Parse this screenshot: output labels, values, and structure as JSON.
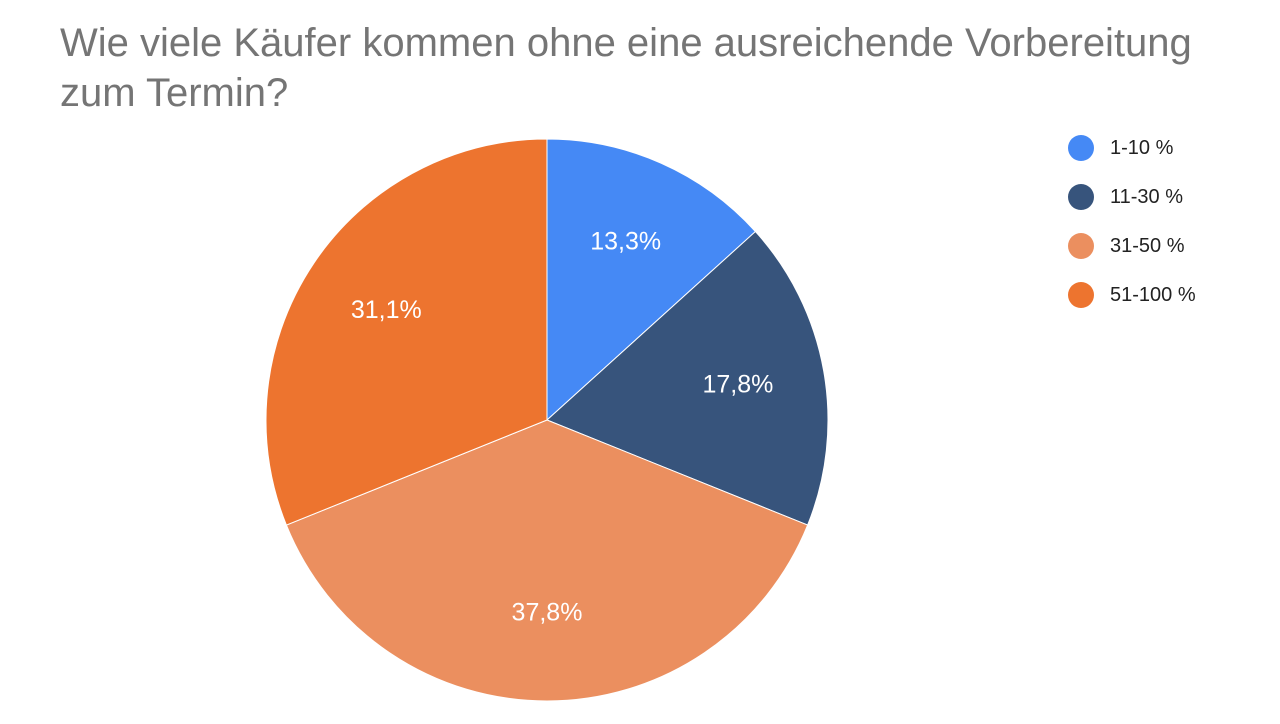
{
  "chart_data": {
    "type": "pie",
    "title": "Wie viele Käufer kommen ohne eine ausreichende Vorbereitung zum Termin?",
    "legend_position": "right",
    "slices": [
      {
        "name": "1-10 %",
        "value": 13.3,
        "label": "13,3%",
        "color": "#4589f5"
      },
      {
        "name": "11-30 %",
        "value": 17.8,
        "label": "17,8%",
        "color": "#37547c"
      },
      {
        "name": "31-50 %",
        "value": 37.8,
        "label": "37,8%",
        "color": "#eb8f5f"
      },
      {
        "name": "51-100 %",
        "value": 31.1,
        "label": "31,1%",
        "color": "#ed742f"
      }
    ]
  }
}
